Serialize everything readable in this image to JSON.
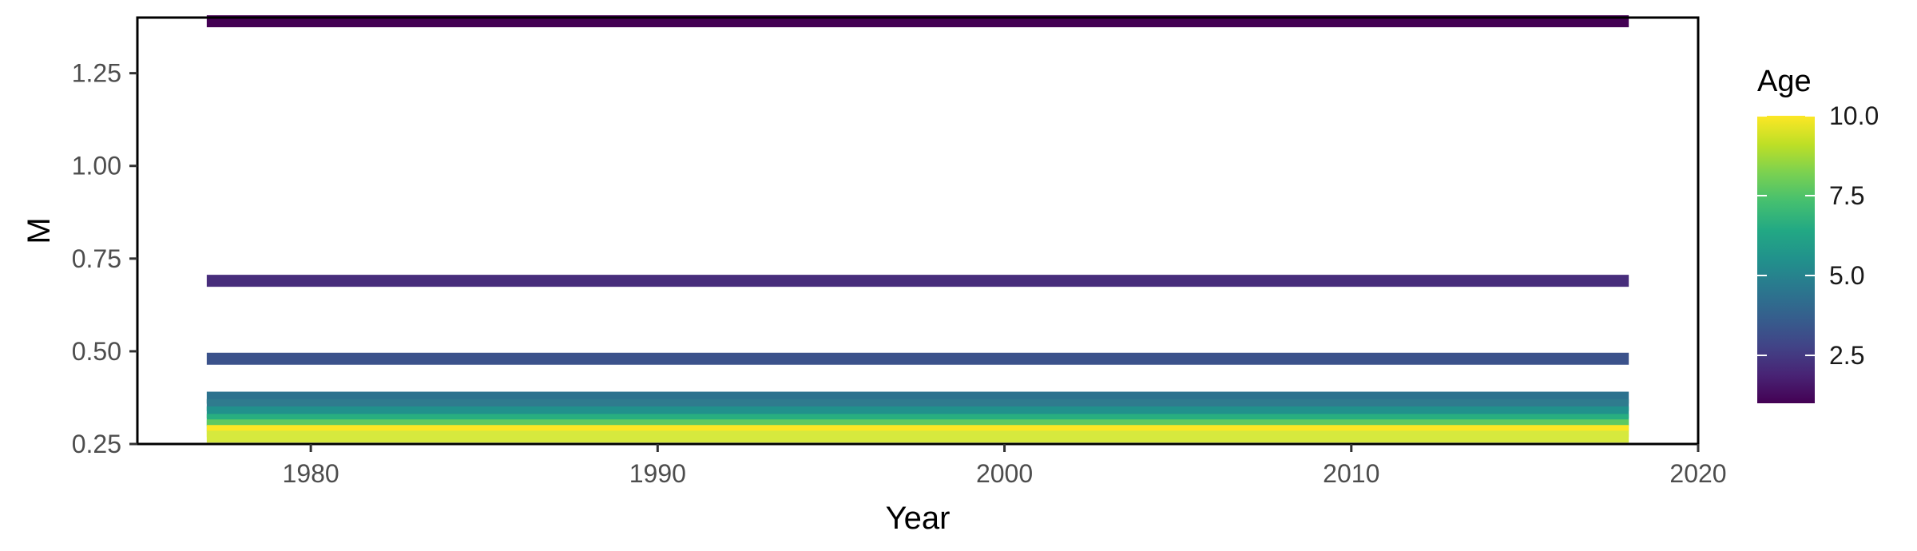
{
  "chart_data": {
    "type": "line",
    "xlabel": "Year",
    "ylabel": "M",
    "xlim": [
      1975,
      2020
    ],
    "ylim": [
      0.25,
      1.4
    ],
    "x_ticks": [
      1980,
      1990,
      2000,
      2010,
      2020
    ],
    "x_tick_labels": [
      "1980",
      "1990",
      "2000",
      "2010",
      "2020"
    ],
    "y_ticks": [
      0.25,
      0.5,
      0.75,
      1.0,
      1.25
    ],
    "y_tick_labels": [
      "0.25",
      "0.50",
      "0.75",
      "1.00",
      "1.25"
    ],
    "x": [
      1977,
      2018
    ],
    "grid": false,
    "legend": {
      "title": "Age",
      "type": "colorbar",
      "placement": "right",
      "range": [
        1,
        10
      ],
      "ticks": [
        2.5,
        5.0,
        7.5,
        10.0
      ],
      "tick_labels": [
        "2.5",
        "5.0",
        "7.5",
        "10.0"
      ]
    },
    "series": [
      {
        "age": 1,
        "values": [
          1.39,
          1.39
        ],
        "color": "#440154"
      },
      {
        "age": 2,
        "values": [
          0.69,
          0.69
        ],
        "color": "#472d7b"
      },
      {
        "age": 3,
        "values": [
          0.48,
          0.48
        ],
        "color": "#3b528b"
      },
      {
        "age": 4,
        "values": [
          0.375,
          0.375
        ],
        "color": "#2c728e"
      },
      {
        "age": 5,
        "values": [
          0.355,
          0.355
        ],
        "color": "#2f7b8e"
      },
      {
        "age": 6,
        "values": [
          0.335,
          0.335
        ],
        "color": "#21918c"
      },
      {
        "age": 7,
        "values": [
          0.315,
          0.315
        ],
        "color": "#28ae80"
      },
      {
        "age": 8,
        "values": [
          0.3,
          0.3
        ],
        "color": "#5ec962"
      },
      {
        "age": 9,
        "values": [
          0.285,
          0.285
        ],
        "color": "#fde725"
      },
      {
        "age": 10,
        "values": [
          0.27,
          0.27
        ],
        "color": "#d6e93e"
      }
    ]
  }
}
